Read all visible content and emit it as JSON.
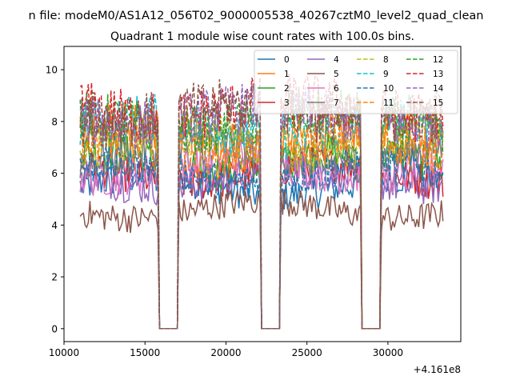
{
  "chart_data": {
    "type": "line",
    "suptitle": "n file: modeM0/AS1A12_056T02_9000005538_40267cztM0_level2_quad_clean",
    "title": "Quadrant 1 module wise count rates with 100.0s bins.",
    "xlabel": "",
    "ylabel": "",
    "x_offset_label": "+4.161e8",
    "xlim": [
      10000,
      34500
    ],
    "ylim": [
      -0.5,
      10.9
    ],
    "x_ticks": [
      10000,
      15000,
      20000,
      25000,
      30000
    ],
    "x_tick_labels": [
      "10000",
      "15000",
      "20000",
      "25000",
      "30000"
    ],
    "y_ticks": [
      0,
      2,
      4,
      6,
      8,
      10
    ],
    "y_tick_labels": [
      "0",
      "2",
      "4",
      "6",
      "8",
      "10"
    ],
    "bin_seconds": 100,
    "data_start": 11000,
    "data_end": 33400,
    "gaps": [
      [
        15900,
        17000
      ],
      [
        22200,
        23300
      ],
      [
        28400,
        29500
      ]
    ],
    "legend": {
      "location": "upper-right",
      "columns": 4
    },
    "series": [
      {
        "name": "0",
        "color": "#1f77b4",
        "dash": "solid",
        "level": 5.5
      },
      {
        "name": "1",
        "color": "#ff7f0e",
        "dash": "solid",
        "level": 7.5
      },
      {
        "name": "2",
        "color": "#2ca02c",
        "dash": "solid",
        "level": 6.5
      },
      {
        "name": "3",
        "color": "#d62728",
        "dash": "solid",
        "level": 6.0
      },
      {
        "name": "4",
        "color": "#9467bd",
        "dash": "solid",
        "level": 5.8
      },
      {
        "name": "5",
        "color": "#8c564b",
        "dash": "solid",
        "level": 4.6
      },
      {
        "name": "6",
        "color": "#e377c2",
        "dash": "solid",
        "level": 6.2
      },
      {
        "name": "7",
        "color": "#7f7f7f",
        "dash": "solid",
        "level": 6.8
      },
      {
        "name": "8",
        "color": "#bcbd22",
        "dash": "dashed",
        "level": 7.2
      },
      {
        "name": "9",
        "color": "#17becf",
        "dash": "dashed",
        "level": 7.8
      },
      {
        "name": "10",
        "color": "#1f77b4",
        "dash": "dashed",
        "level": 6.0
      },
      {
        "name": "11",
        "color": "#ff7f0e",
        "dash": "dashed",
        "level": 7.0
      },
      {
        "name": "12",
        "color": "#2ca02c",
        "dash": "dashed",
        "level": 8.0
      },
      {
        "name": "13",
        "color": "#d62728",
        "dash": "dashed",
        "level": 8.5
      },
      {
        "name": "14",
        "color": "#9467bd",
        "dash": "dashed",
        "level": 8.2
      },
      {
        "name": "15",
        "color": "#8c564b",
        "dash": "dashed",
        "level": 8.3
      }
    ]
  }
}
